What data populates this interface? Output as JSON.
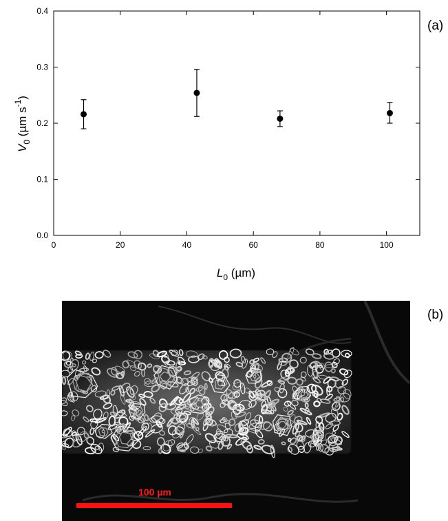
{
  "chart_data": {
    "type": "scatter",
    "panel_label": "(a)",
    "x": [
      9,
      43,
      68,
      101
    ],
    "y": [
      0.216,
      0.254,
      0.208,
      0.218
    ],
    "yerr_low": [
      0.19,
      0.212,
      0.194,
      0.2
    ],
    "yerr_high": [
      0.242,
      0.296,
      0.222,
      0.237
    ],
    "xlim": [
      0,
      110
    ],
    "ylim": [
      0.0,
      0.4
    ],
    "xticks": [
      "0",
      "20",
      "40",
      "60",
      "80",
      "100"
    ],
    "yticks": [
      "0.0",
      "0.1",
      "0.2",
      "0.3",
      "0.4"
    ],
    "xlabel": {
      "main": "L",
      "sub": "0",
      "rest": " (µm)"
    },
    "ylabel": {
      "main": "V",
      "sub": "0",
      "rest": " (µm s",
      "sup": "-1",
      "close": ")"
    },
    "grid": false,
    "marker_color": "#000000"
  },
  "micrograph": {
    "panel_label": "(b)",
    "scale_bar_label": "100 µm",
    "scale_bar_color": "#ff1010"
  }
}
